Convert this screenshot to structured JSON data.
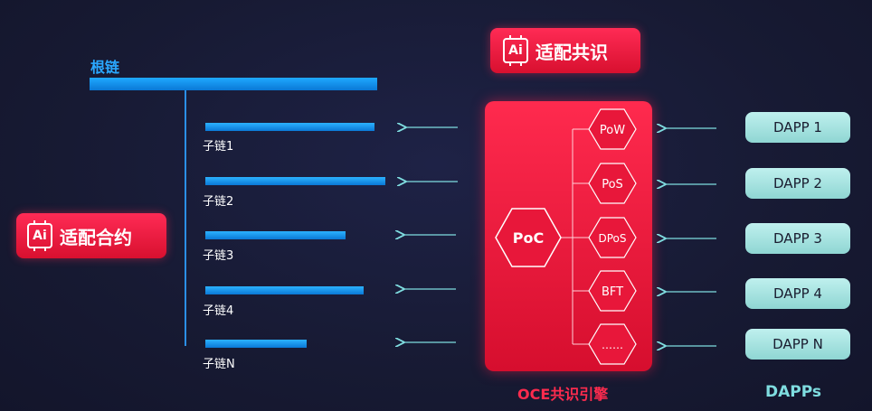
{
  "root_chain": {
    "label": "根链"
  },
  "sub_chains": [
    {
      "label": "子链1"
    },
    {
      "label": "子链2"
    },
    {
      "label": "子链3"
    },
    {
      "label": "子链4"
    },
    {
      "label": "子链N"
    }
  ],
  "contract_badge": {
    "icon_text": "Ai",
    "label": "适配合约"
  },
  "consensus_badge": {
    "icon_text": "Ai",
    "label": "适配共识"
  },
  "engine": {
    "center": "PoC",
    "algorithms": [
      "PoW",
      "PoS",
      "DPoS",
      "BFT",
      "……"
    ],
    "label": "OCE共识引擎"
  },
  "dapps": {
    "items": [
      "DAPP 1",
      "DAPP 2",
      "DAPP 3",
      "DAPP 4",
      "DAPP N"
    ],
    "label": "DAPPs"
  },
  "colors": {
    "chain_blue": "#1fa9ff",
    "engine_red": "#e8173a",
    "dapp_teal": "#a9e6e3",
    "arrow": "#7fdde0"
  }
}
